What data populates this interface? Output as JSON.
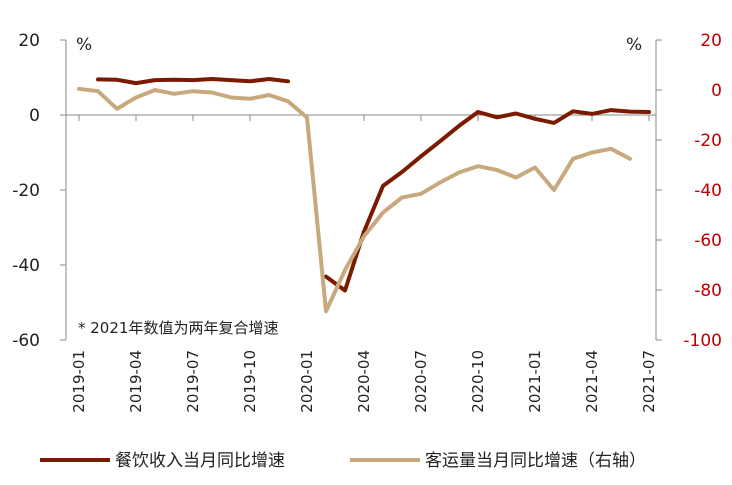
{
  "chart_data": {
    "type": "line",
    "note": "* 2021年数值为两年复合增速",
    "left_axis": {
      "unit": "%",
      "range": [
        -60,
        20
      ],
      "ticks": [
        20,
        0,
        -20,
        -40,
        -60
      ]
    },
    "right_axis": {
      "unit": "%",
      "range": [
        -100,
        20
      ],
      "ticks": [
        20,
        0,
        -20,
        -40,
        -60,
        -80,
        -100
      ]
    },
    "x_tick_labels": [
      "2019-01",
      "2019-04",
      "2019-07",
      "2019-10",
      "2020-01",
      "2020-04",
      "2020-07",
      "2020-10",
      "2021-01",
      "2021-04",
      "2021-07"
    ],
    "x_months": [
      "2019-01",
      "2019-02",
      "2019-03",
      "2019-04",
      "2019-05",
      "2019-06",
      "2019-07",
      "2019-08",
      "2019-09",
      "2019-10",
      "2019-11",
      "2019-12",
      "2020-01",
      "2020-02",
      "2020-03",
      "2020-04",
      "2020-05",
      "2020-06",
      "2020-07",
      "2020-08",
      "2020-09",
      "2020-10",
      "2020-11",
      "2020-12",
      "2021-01",
      "2021-02",
      "2021-03",
      "2021-04",
      "2021-05",
      "2021-06",
      "2021-07"
    ],
    "series": [
      {
        "name": "餐饮收入当月同比增速",
        "axis": "left",
        "color": "#7a1a00",
        "values": [
          null,
          9.5,
          9.4,
          8.5,
          9.3,
          9.4,
          9.3,
          9.6,
          9.3,
          9.0,
          9.6,
          9.0,
          null,
          -43.1,
          -46.8,
          -31.1,
          -18.9,
          -15.2,
          -11.0,
          -7.0,
          -2.9,
          0.8,
          -0.6,
          0.4,
          -1.0,
          -2.1,
          1.0,
          0.3,
          1.3,
          0.9,
          0.8
        ]
      },
      {
        "name": "客运量当月同比增速（右轴）",
        "axis": "right",
        "color": "#c8a97e",
        "values": [
          0.5,
          -0.5,
          -7.5,
          -3.0,
          0.0,
          -1.5,
          -0.5,
          -1.0,
          -3.0,
          -3.5,
          -2.0,
          -4.5,
          -11.0,
          -88.5,
          -72.0,
          -58.5,
          -49.0,
          -43.0,
          -41.5,
          -37.0,
          -33.0,
          -30.5,
          -32.0,
          -35.0,
          -31.0,
          -40.0,
          -27.5,
          -25.0,
          -23.5,
          -27.5,
          null
        ]
      }
    ],
    "grid": false,
    "legend_placement": "bottom"
  }
}
